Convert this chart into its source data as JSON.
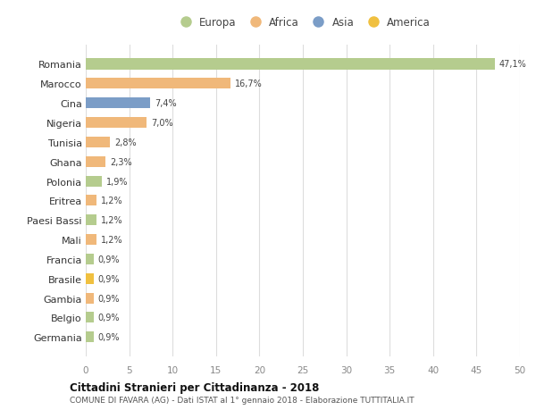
{
  "countries": [
    "Romania",
    "Marocco",
    "Cina",
    "Nigeria",
    "Tunisia",
    "Ghana",
    "Polonia",
    "Eritrea",
    "Paesi Bassi",
    "Mali",
    "Francia",
    "Brasile",
    "Gambia",
    "Belgio",
    "Germania"
  ],
  "values": [
    47.1,
    16.7,
    7.4,
    7.0,
    2.8,
    2.3,
    1.9,
    1.2,
    1.2,
    1.2,
    0.9,
    0.9,
    0.9,
    0.9,
    0.9
  ],
  "labels": [
    "47,1%",
    "16,7%",
    "7,4%",
    "7,0%",
    "2,8%",
    "2,3%",
    "1,9%",
    "1,2%",
    "1,2%",
    "1,2%",
    "0,9%",
    "0,9%",
    "0,9%",
    "0,9%",
    "0,9%"
  ],
  "continents": [
    "Europa",
    "Africa",
    "Asia",
    "Africa",
    "Africa",
    "Africa",
    "Europa",
    "Africa",
    "Europa",
    "Africa",
    "Europa",
    "America",
    "Africa",
    "Europa",
    "Europa"
  ],
  "colors": {
    "Europa": "#b5cc8e",
    "Africa": "#f0b87a",
    "Asia": "#7b9dc7",
    "America": "#f0c040"
  },
  "xlim": [
    0,
    50
  ],
  "xticks": [
    0,
    5,
    10,
    15,
    20,
    25,
    30,
    35,
    40,
    45,
    50
  ],
  "title": "Cittadini Stranieri per Cittadinanza - 2018",
  "subtitle": "COMUNE DI FAVARA (AG) - Dati ISTAT al 1° gennaio 2018 - Elaborazione TUTTITALIA.IT",
  "background_color": "#ffffff",
  "grid_color": "#dddddd",
  "bar_height": 0.55,
  "legend_order": [
    "Europa",
    "Africa",
    "Asia",
    "America"
  ]
}
